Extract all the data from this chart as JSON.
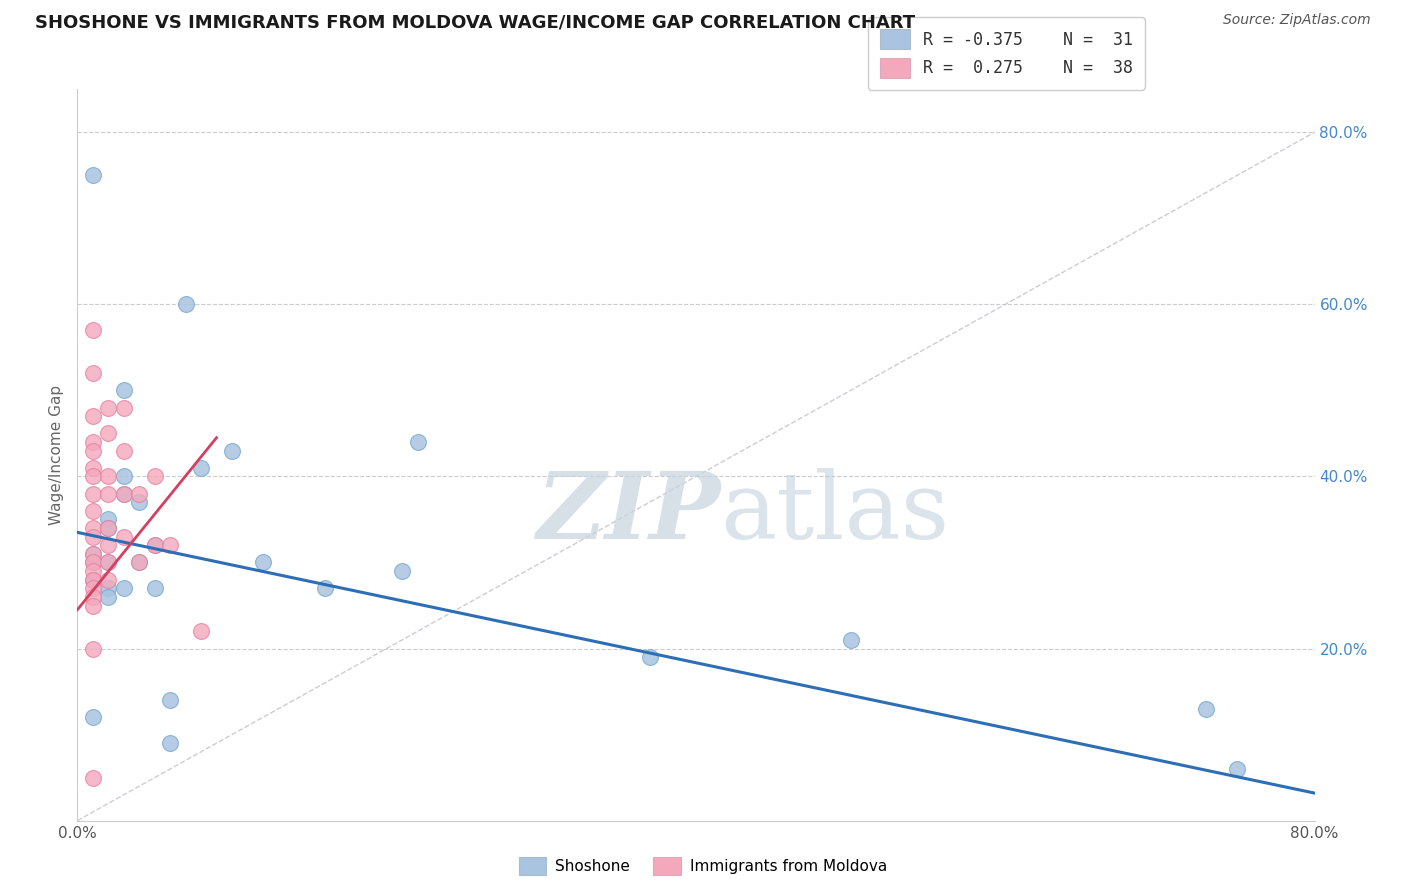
{
  "title": "SHOSHONE VS IMMIGRANTS FROM MOLDOVA WAGE/INCOME GAP CORRELATION CHART",
  "source": "Source: ZipAtlas.com",
  "ylabel": "Wage/Income Gap",
  "shoshone_R": -0.375,
  "shoshone_N": 31,
  "moldova_R": 0.275,
  "moldova_N": 38,
  "shoshone_color": "#a8c4e0",
  "shoshone_edge_color": "#7aaad0",
  "moldova_color": "#f4a8bc",
  "moldova_edge_color": "#e880a0",
  "shoshone_line_color": "#2d6eb5",
  "moldova_line_color": "#d44060",
  "diagonal_color": "#c0c0c8",
  "watermark_zip": "ZIP",
  "watermark_atlas": "atlas",
  "watermark_color": "#d0dce8",
  "background_color": "#ffffff",
  "xlim": [
    0.0,
    0.8
  ],
  "ylim": [
    0.0,
    0.85
  ],
  "shoshone_x": [
    0.01,
    0.01,
    0.01,
    0.02,
    0.02,
    0.02,
    0.02,
    0.03,
    0.03,
    0.03,
    0.04,
    0.04,
    0.05,
    0.05,
    0.06,
    0.07,
    0.08,
    0.1,
    0.12,
    0.16,
    0.21,
    0.22,
    0.37,
    0.5,
    0.73,
    0.75,
    0.02,
    0.01,
    0.01,
    0.06,
    0.03
  ],
  "shoshone_y": [
    0.75,
    0.31,
    0.12,
    0.35,
    0.34,
    0.27,
    0.26,
    0.5,
    0.38,
    0.27,
    0.37,
    0.3,
    0.32,
    0.27,
    0.14,
    0.6,
    0.41,
    0.43,
    0.3,
    0.27,
    0.29,
    0.44,
    0.19,
    0.21,
    0.13,
    0.06,
    0.3,
    0.28,
    0.3,
    0.09,
    0.4
  ],
  "moldova_x": [
    0.01,
    0.01,
    0.01,
    0.01,
    0.01,
    0.01,
    0.01,
    0.01,
    0.01,
    0.01,
    0.01,
    0.01,
    0.01,
    0.01,
    0.01,
    0.01,
    0.01,
    0.01,
    0.01,
    0.01,
    0.02,
    0.02,
    0.02,
    0.02,
    0.02,
    0.02,
    0.02,
    0.02,
    0.03,
    0.03,
    0.03,
    0.03,
    0.04,
    0.04,
    0.05,
    0.05,
    0.06,
    0.08
  ],
  "moldova_y": [
    0.57,
    0.52,
    0.47,
    0.44,
    0.43,
    0.41,
    0.4,
    0.38,
    0.36,
    0.34,
    0.33,
    0.31,
    0.3,
    0.29,
    0.28,
    0.27,
    0.26,
    0.25,
    0.2,
    0.05,
    0.48,
    0.45,
    0.4,
    0.38,
    0.34,
    0.32,
    0.3,
    0.28,
    0.48,
    0.43,
    0.38,
    0.33,
    0.38,
    0.3,
    0.4,
    0.32,
    0.32,
    0.22
  ],
  "blue_line_x0": 0.0,
  "blue_line_y0": 0.335,
  "blue_line_x1": 0.8,
  "blue_line_y1": 0.032,
  "pink_line_x0": 0.0,
  "pink_line_y0": 0.245,
  "pink_line_x1": 0.09,
  "pink_line_y1": 0.445
}
